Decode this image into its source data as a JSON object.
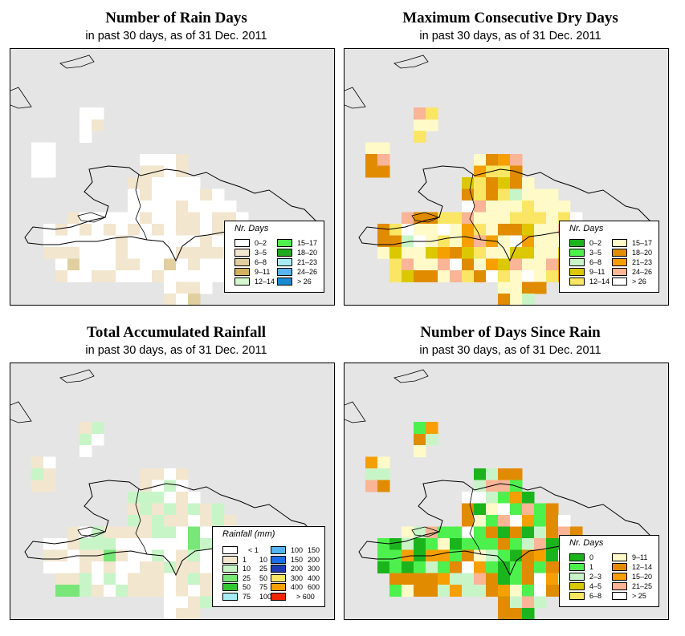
{
  "panels": [
    {
      "id": "rain-days",
      "title": "Number of Rain Days",
      "subtitle": "in past 30 days, as of  31 Dec. 2011",
      "legend": {
        "title": "Nr. Days",
        "items": [
          {
            "label": "0–2",
            "color": "#ffffff"
          },
          {
            "label": "3–5",
            "color": "#f2e6cf"
          },
          {
            "label": "6–8",
            "color": "#e2cfa0"
          },
          {
            "label": "9–11",
            "color": "#d2b15e"
          },
          {
            "label": "12–14",
            "color": "#d3f7cf"
          },
          {
            "label": "15–17",
            "color": "#4ef04e"
          },
          {
            "label": "18–20",
            "color": "#1eaa1e"
          },
          {
            "label": "21–23",
            "color": "#a6ecf2"
          },
          {
            "label": "24–26",
            "color": "#58b4f0"
          },
          {
            "label": "> 26",
            "color": "#1a8ad0"
          }
        ]
      }
    },
    {
      "id": "dry-days",
      "title": "Maximum Consecutive Dry Days",
      "subtitle": "in past 30 days, as of  31 Dec. 2011",
      "legend": {
        "title": "Nr. Days",
        "items": [
          {
            "label": "0–2",
            "color": "#1cb41c"
          },
          {
            "label": "3–5",
            "color": "#4ef04e"
          },
          {
            "label": "6–8",
            "color": "#c8f5c8"
          },
          {
            "label": "9–11",
            "color": "#dcc800"
          },
          {
            "label": "12–14",
            "color": "#fae664"
          },
          {
            "label": "15–17",
            "color": "#fffac8"
          },
          {
            "label": "18–20",
            "color": "#e18c00"
          },
          {
            "label": "21–23",
            "color": "#f5a000"
          },
          {
            "label": "24–26",
            "color": "#fab496"
          },
          {
            "label": "> 26",
            "color": "#ffffff"
          }
        ]
      }
    },
    {
      "id": "rainfall",
      "title": "Total Accumulated Rainfall",
      "subtitle": "in past 30 days, as of  31 Dec. 2011",
      "legend": {
        "title": "Rainfall (mm)",
        "items": [
          {
            "label_lo": "",
            "label_hi": "< 1",
            "color": "#ffffff"
          },
          {
            "label_lo": "1",
            "label_hi": "10",
            "color": "#f2e6cf"
          },
          {
            "label_lo": "10",
            "label_hi": "25",
            "color": "#c8f5c8"
          },
          {
            "label_lo": "25",
            "label_hi": "50",
            "color": "#78e678"
          },
          {
            "label_lo": "50",
            "label_hi": "75",
            "color": "#32c832"
          },
          {
            "label_lo": "75",
            "label_hi": "100",
            "color": "#a6ecf2"
          },
          {
            "label_lo": "100",
            "label_hi": "150",
            "color": "#58b4f0"
          },
          {
            "label_lo": "150",
            "label_hi": "200",
            "color": "#1e6ee6"
          },
          {
            "label_lo": "200",
            "label_hi": "300",
            "color": "#1e3cb4"
          },
          {
            "label_lo": "300",
            "label_hi": "400",
            "color": "#fae664"
          },
          {
            "label_lo": "400",
            "label_hi": "600",
            "color": "#f5a000"
          },
          {
            "label_lo": "",
            "label_hi": "> 600",
            "color": "#f02800"
          }
        ]
      }
    },
    {
      "id": "since-rain",
      "title": "Number of Days Since Rain",
      "subtitle": "in past 30 days, as of  31 Dec. 2011",
      "legend": {
        "title": "Nr. Days",
        "items": [
          {
            "label": "0",
            "color": "#1cb41c"
          },
          {
            "label": "1",
            "color": "#4ef04e"
          },
          {
            "label": "2–3",
            "color": "#c8f5c8"
          },
          {
            "label": "4–5",
            "color": "#dcc800"
          },
          {
            "label": "6–8",
            "color": "#fae664"
          },
          {
            "label": "9–11",
            "color": "#fffac8"
          },
          {
            "label": "12–14",
            "color": "#e18c00"
          },
          {
            "label": "15–20",
            "color": "#f5a000"
          },
          {
            "label": "21–25",
            "color": "#fab496"
          },
          {
            "label": "> 25",
            "color": "#ffffff"
          }
        ]
      }
    }
  ]
}
